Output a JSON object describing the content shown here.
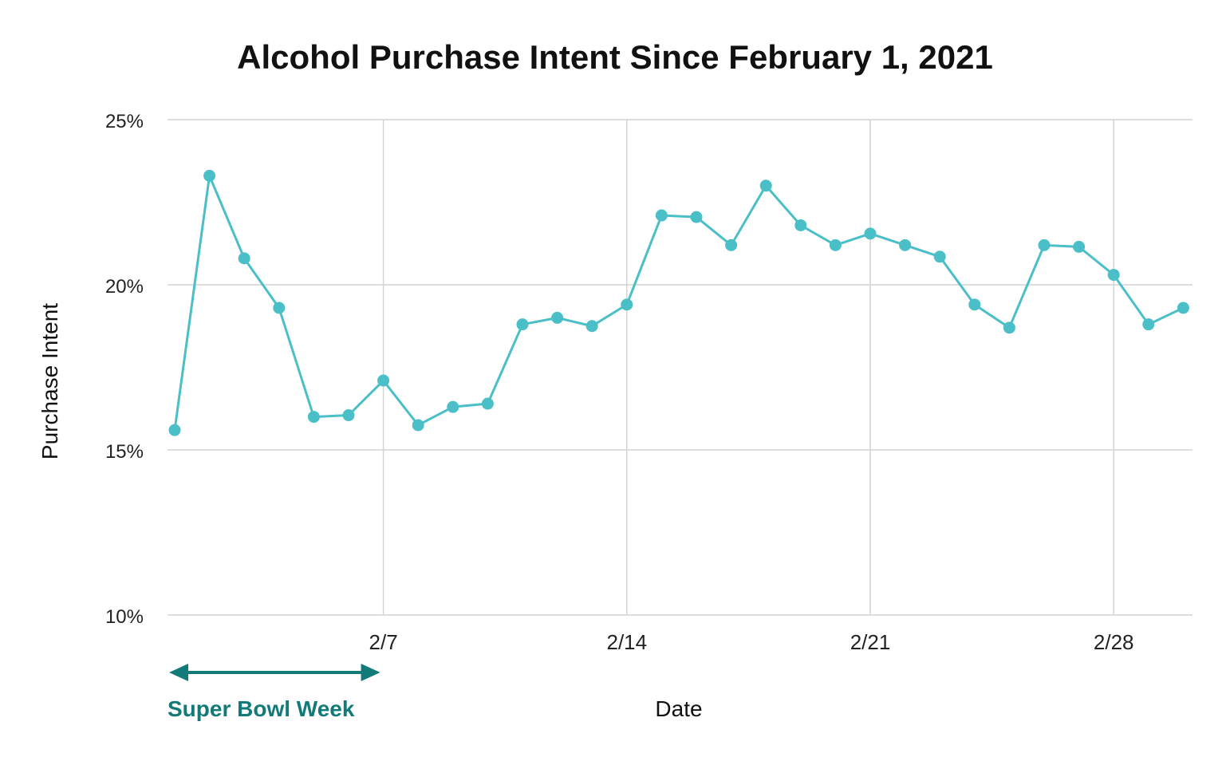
{
  "chart_data": {
    "type": "line",
    "title": "Alcohol Purchase Intent Since February 1, 2021",
    "xlabel": "Date",
    "ylabel": "Purchase Intent",
    "ylim": [
      10,
      25
    ],
    "xlim": [
      "2/1",
      "2/29"
    ],
    "grid": true,
    "y_ticks": [
      "10%",
      "15%",
      "20%",
      "25%"
    ],
    "y_tick_values": [
      10,
      15,
      20,
      25
    ],
    "x_ticks": [
      "2/7",
      "2/14",
      "2/21",
      "2/28"
    ],
    "x_tick_dates": [
      "2/7",
      "2/14",
      "2/21",
      "2/28"
    ],
    "series": [
      {
        "color": "#4bbfc7",
        "points": [
          {
            "x": "2/1",
            "y": 15.6
          },
          {
            "x": "2/2",
            "y": 23.3
          },
          {
            "x": "2/3",
            "y": 20.8
          },
          {
            "x": "2/4",
            "y": 19.3
          },
          {
            "x": "2/5",
            "y": 16.0
          },
          {
            "x": "2/6",
            "y": 16.05
          },
          {
            "x": "2/7",
            "y": 17.1
          },
          {
            "x": "2/8",
            "y": 15.75
          },
          {
            "x": "2/9",
            "y": 16.3
          },
          {
            "x": "2/10",
            "y": 16.4
          },
          {
            "x": "2/11",
            "y": 18.8
          },
          {
            "x": "2/12",
            "y": 19.0
          },
          {
            "x": "2/13",
            "y": 18.75
          },
          {
            "x": "2/14",
            "y": 19.4
          },
          {
            "x": "2/15",
            "y": 22.1
          },
          {
            "x": "2/16",
            "y": 22.05
          },
          {
            "x": "2/17",
            "y": 21.2
          },
          {
            "x": "2/18",
            "y": 23.0
          },
          {
            "x": "2/19",
            "y": 21.8
          },
          {
            "x": "2/20",
            "y": 21.2
          },
          {
            "x": "2/21",
            "y": 21.55
          },
          {
            "x": "2/22",
            "y": 21.2
          },
          {
            "x": "2/23",
            "y": 20.85
          },
          {
            "x": "2/24",
            "y": 19.4
          },
          {
            "x": "2/25",
            "y": 18.7
          },
          {
            "x": "2/26",
            "y": 21.2
          },
          {
            "x": "2/27",
            "y": 21.15
          },
          {
            "x": "2/28",
            "y": 20.3
          },
          {
            "x": "2/29",
            "y": 18.8
          },
          {
            "x": "3/1",
            "y": 19.3
          }
        ]
      }
    ],
    "annotation": {
      "label": "Super Bowl Week",
      "from": "2/1",
      "to": "2/7",
      "color": "#127a78"
    },
    "colors": {
      "line": "#4bbfc7",
      "grid": "#d4d4d4",
      "annotation": "#127a78"
    }
  }
}
